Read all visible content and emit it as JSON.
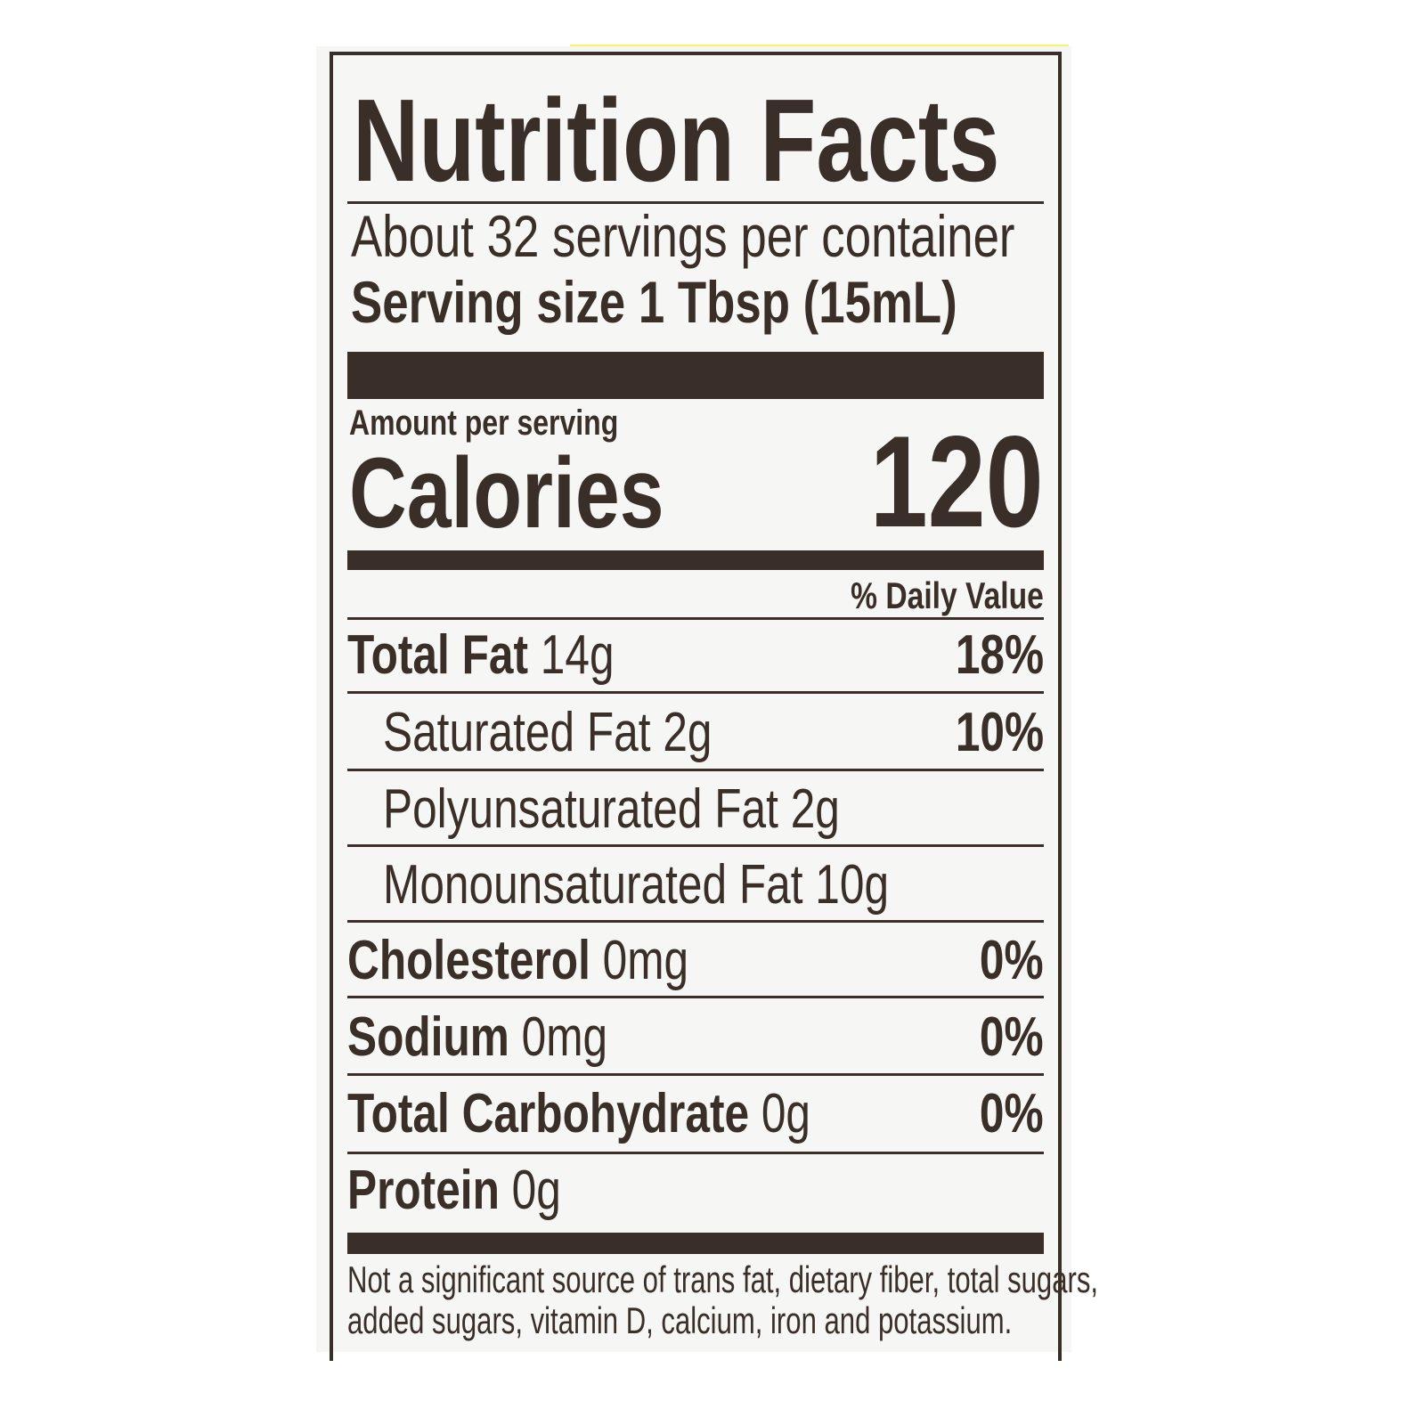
{
  "label": {
    "title": "Nutrition Facts",
    "servings_per_container": "About 32 servings per container",
    "serving_size_label": "Serving size",
    "serving_size_value": "1 Tbsp (15mL)",
    "amount_per_serving": "Amount per serving",
    "calories_label": "Calories",
    "calories_value": "120",
    "daily_value_header": "% Daily Value",
    "rows": [
      {
        "name": "Total Fat",
        "amount": "14g",
        "dv": "18%"
      },
      {
        "name": "Saturated Fat",
        "amount": "2g",
        "dv": "10%"
      },
      {
        "name": "Polyunsaturated Fat",
        "amount": "2g",
        "dv": ""
      },
      {
        "name": "Monounsaturated Fat",
        "amount": "10g",
        "dv": ""
      },
      {
        "name": "Cholesterol",
        "amount": "0mg",
        "dv": "0%"
      },
      {
        "name": "Sodium",
        "amount": "0mg",
        "dv": "0%"
      },
      {
        "name": "Total Carbohydrate",
        "amount": "0g",
        "dv": "0%"
      },
      {
        "name": "Protein",
        "amount": "0g",
        "dv": ""
      }
    ],
    "footnote_line1": "Not a significant source of trans fat, dietary fiber, total sugars,",
    "footnote_line2": "added sugars, vitamin D, calcium, iron and potassium."
  },
  "colors": {
    "ink": "#3a2e28",
    "background": "#f6f6f4",
    "accent_strip": "#f2f56a"
  }
}
